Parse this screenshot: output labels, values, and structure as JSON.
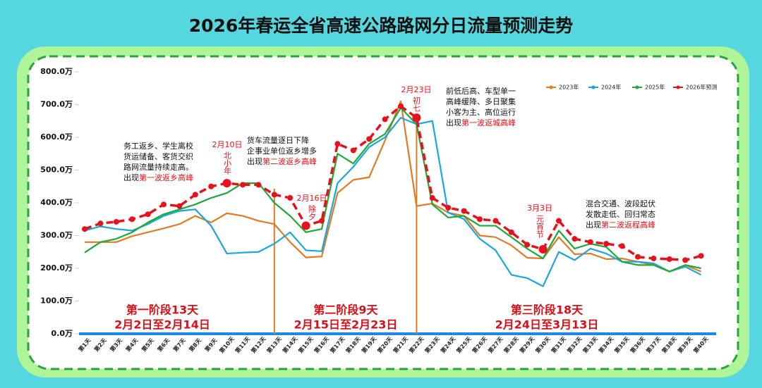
{
  "chart_data": {
    "type": "line",
    "title": "2026年春运全省高速公路路网分日流量预测走势",
    "categories": [
      "第1天",
      "第2天",
      "第3天",
      "第4天",
      "第5天",
      "第6天",
      "第7天",
      "第8天",
      "第9天",
      "第10天",
      "第11天",
      "第12天",
      "第13天",
      "第14天",
      "第15天",
      "第16天",
      "第17天",
      "第18天",
      "第19天",
      "第20天",
      "第21天",
      "第22天",
      "第23天",
      "第24天",
      "第25天",
      "第26天",
      "第27天",
      "第28天",
      "第29天",
      "第30天",
      "第31天",
      "第32天",
      "第33天",
      "第34天",
      "第35天",
      "第36天",
      "第37天",
      "第38天",
      "第39天",
      "第40天"
    ],
    "series": [
      {
        "name": "2023年",
        "color": "#e07b24",
        "values": [
          280,
          280,
          280,
          298,
          310,
          322,
          335,
          360,
          340,
          368,
          360,
          345,
          335,
          280,
          233,
          236,
          430,
          470,
          478,
          590,
          710,
          390,
          398,
          370,
          360,
          300,
          295,
          270,
          232,
          230,
          295,
          243,
          245,
          228,
          230,
          220,
          210,
          190,
          210,
          190
        ]
      },
      {
        "name": "2024年",
        "color": "#1aa7dc",
        "values": [
          315,
          328,
          320,
          315,
          335,
          360,
          375,
          380,
          330,
          245,
          248,
          250,
          275,
          310,
          255,
          252,
          460,
          510,
          570,
          600,
          660,
          640,
          650,
          370,
          350,
          290,
          255,
          180,
          170,
          145,
          250,
          225,
          260,
          245,
          220,
          220,
          215,
          190,
          205,
          180
        ]
      },
      {
        "name": "2025年",
        "color": "#1fa83a",
        "values": [
          248,
          280,
          290,
          310,
          340,
          365,
          380,
          395,
          415,
          430,
          460,
          460,
          400,
          360,
          310,
          320,
          550,
          520,
          580,
          610,
          690,
          640,
          395,
          355,
          360,
          330,
          330,
          295,
          260,
          230,
          315,
          260,
          275,
          265,
          220,
          210,
          210,
          190,
          210,
          200
        ]
      },
      {
        "name": "2026年预测",
        "color": "#e8101a",
        "values": [
          320,
          337,
          342,
          350,
          365,
          395,
          390,
          425,
          450,
          460,
          455,
          455,
          425,
          415,
          330,
          345,
          580,
          560,
          595,
          655,
          695,
          660,
          415,
          385,
          375,
          350,
          345,
          310,
          272,
          258,
          345,
          290,
          280,
          275,
          268,
          235,
          230,
          228,
          225,
          238
        ]
      }
    ],
    "ylim": [
      0,
      800
    ],
    "yticks": [
      {
        "value": 0,
        "label": "0.0万"
      },
      {
        "value": 100,
        "label": "100.0万"
      },
      {
        "value": 200,
        "label": "200.0万"
      },
      {
        "value": 300,
        "label": "300.0万"
      },
      {
        "value": 400,
        "label": "400.0万"
      },
      {
        "value": 500,
        "label": "500.0万"
      },
      {
        "value": 600,
        "label": "600.0万"
      },
      {
        "value": 700,
        "label": "700.0万"
      },
      {
        "value": 800,
        "label": "800.0万"
      }
    ],
    "grid": false,
    "legend": "top-right",
    "annotations": [
      {
        "lines": [
          "务工返乡、学生离校",
          "货运储备、客货交织",
          "路网流量持续走高。"
        ],
        "prefix": "出现",
        "highlight": "第一波返乡高峰"
      },
      {
        "lines": [
          "货车流量逐日下降",
          "企事业单位返乡增多"
        ],
        "prefix": "出现",
        "highlight": "第二波返乡高峰"
      },
      {
        "lines": [
          "前低后高、车型单一",
          "高峰缓降、多日聚集",
          "小客为主、高位运行"
        ],
        "prefix": "出现",
        "highlight": "第一波返城高峰"
      },
      {
        "lines": [
          "混合交通、波段起伏",
          "发散走低、回归常态"
        ],
        "prefix": "出现",
        "highlight": "第二波返程高峰"
      }
    ],
    "holidays": [
      {
        "date": "2月10日",
        "name": "北小年"
      },
      {
        "date": "2月16日",
        "name": "除夕"
      },
      {
        "date": "2月23日",
        "name": "初七"
      },
      {
        "date": "3月3日",
        "name": "元宵节"
      }
    ],
    "phases": [
      {
        "name": "第一阶段13天",
        "range": "2月2日至2月14日"
      },
      {
        "name": "第二阶段9天",
        "range": "2月15日至2月23日"
      },
      {
        "name": "第三阶段18天",
        "range": "2月24日至3月13日"
      }
    ]
  }
}
